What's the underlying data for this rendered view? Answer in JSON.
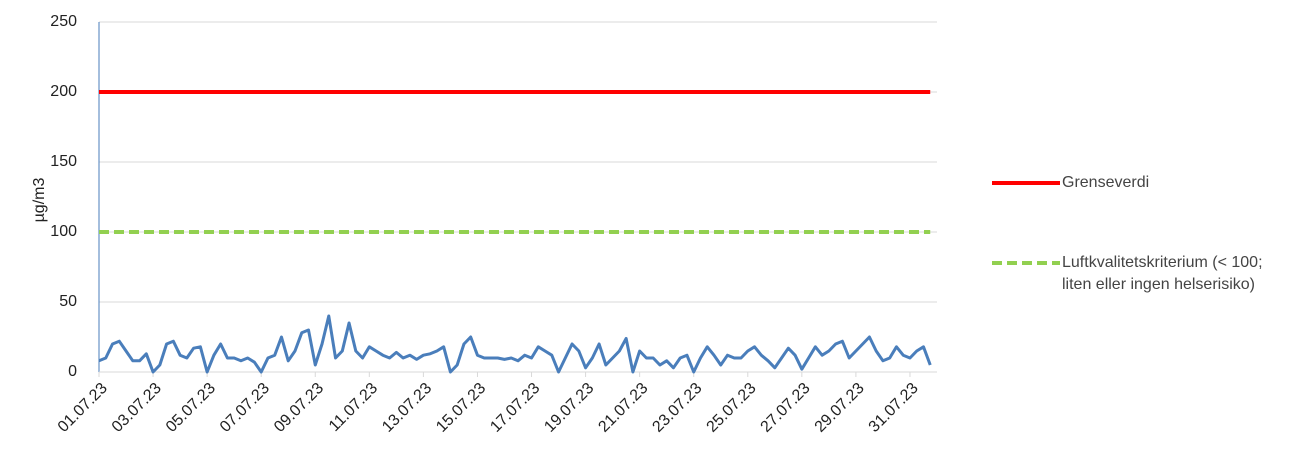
{
  "chart_data": {
    "type": "line",
    "y_label": "µg/m3",
    "categories": [
      "01.07.23",
      null,
      null,
      null,
      null,
      null,
      null,
      null,
      "03.07.23",
      null,
      null,
      null,
      null,
      null,
      null,
      null,
      "05.07.23",
      null,
      null,
      null,
      null,
      null,
      null,
      null,
      "07.07.23",
      null,
      null,
      null,
      null,
      null,
      null,
      null,
      "09.07.23",
      null,
      null,
      null,
      null,
      null,
      null,
      null,
      "11.07.23",
      null,
      null,
      null,
      null,
      null,
      null,
      null,
      "13.07.23",
      null,
      null,
      null,
      null,
      null,
      null,
      null,
      "15.07.23",
      null,
      null,
      null,
      null,
      null,
      null,
      null,
      "17.07.23",
      null,
      null,
      null,
      null,
      null,
      null,
      null,
      "19.07.23",
      null,
      null,
      null,
      null,
      null,
      null,
      null,
      "21.07.23",
      null,
      null,
      null,
      null,
      null,
      null,
      null,
      "23.07.23",
      null,
      null,
      null,
      null,
      null,
      null,
      null,
      "25.07.23",
      null,
      null,
      null,
      null,
      null,
      null,
      null,
      "27.07.23",
      null,
      null,
      null,
      null,
      null,
      null,
      null,
      "29.07.23",
      null,
      null,
      null,
      null,
      null,
      null,
      null,
      "31.07.23",
      null,
      null,
      null
    ],
    "series": [
      {
        "name": null,
        "color": "#4a7ebb",
        "width": 3,
        "dash": false,
        "values": [
          8,
          10,
          20,
          22,
          15,
          8,
          8,
          13,
          0,
          5,
          20,
          22,
          12,
          10,
          17,
          18,
          0,
          12,
          20,
          10,
          10,
          8,
          10,
          7,
          0,
          10,
          12,
          25,
          8,
          15,
          28,
          30,
          5,
          20,
          40,
          10,
          15,
          35,
          15,
          10,
          18,
          15,
          12,
          10,
          14,
          10,
          12,
          9,
          12,
          13,
          15,
          18,
          0,
          5,
          20,
          25,
          12,
          10,
          10,
          10,
          9,
          10,
          8,
          12,
          10,
          18,
          15,
          12,
          0,
          10,
          20,
          15,
          3,
          10,
          20,
          5,
          10,
          15,
          24,
          0,
          15,
          10,
          10,
          5,
          8,
          3,
          10,
          12,
          0,
          10,
          18,
          12,
          5,
          12,
          10,
          10,
          15,
          18,
          12,
          8,
          3,
          10,
          17,
          12,
          2,
          10,
          18,
          12,
          15,
          20,
          22,
          10,
          15,
          20,
          25,
          15,
          8,
          10,
          18,
          12,
          10,
          15,
          18,
          5
        ]
      },
      {
        "name": "Grenseverdi",
        "color": "#ff0000",
        "width": 4,
        "dash": false,
        "values": [
          200,
          200,
          200,
          200,
          200,
          200,
          200,
          200,
          200,
          200,
          200,
          200,
          200,
          200,
          200,
          200,
          200,
          200,
          200,
          200,
          200,
          200,
          200,
          200,
          200,
          200,
          200,
          200,
          200,
          200,
          200,
          200,
          200,
          200,
          200,
          200,
          200,
          200,
          200,
          200,
          200,
          200,
          200,
          200,
          200,
          200,
          200,
          200,
          200,
          200,
          200,
          200,
          200,
          200,
          200,
          200,
          200,
          200,
          200,
          200,
          200,
          200,
          200,
          200,
          200,
          200,
          200,
          200,
          200,
          200,
          200,
          200,
          200,
          200,
          200,
          200,
          200,
          200,
          200,
          200,
          200,
          200,
          200,
          200,
          200,
          200,
          200,
          200,
          200,
          200,
          200,
          200,
          200,
          200,
          200,
          200,
          200,
          200,
          200,
          200,
          200,
          200,
          200,
          200,
          200,
          200,
          200,
          200,
          200,
          200,
          200,
          200,
          200,
          200,
          200,
          200,
          200,
          200,
          200,
          200,
          200,
          200,
          200,
          200
        ]
      },
      {
        "name": "Luftkvalitetskriterium (< 100; liten eller ingen helserisiko)",
        "color": "#92d050",
        "width": 4,
        "dash": true,
        "values": [
          100,
          100,
          100,
          100,
          100,
          100,
          100,
          100,
          100,
          100,
          100,
          100,
          100,
          100,
          100,
          100,
          100,
          100,
          100,
          100,
          100,
          100,
          100,
          100,
          100,
          100,
          100,
          100,
          100,
          100,
          100,
          100,
          100,
          100,
          100,
          100,
          100,
          100,
          100,
          100,
          100,
          100,
          100,
          100,
          100,
          100,
          100,
          100,
          100,
          100,
          100,
          100,
          100,
          100,
          100,
          100,
          100,
          100,
          100,
          100,
          100,
          100,
          100,
          100,
          100,
          100,
          100,
          100,
          100,
          100,
          100,
          100,
          100,
          100,
          100,
          100,
          100,
          100,
          100,
          100,
          100,
          100,
          100,
          100,
          100,
          100,
          100,
          100,
          100,
          100,
          100,
          100,
          100,
          100,
          100,
          100,
          100,
          100,
          100,
          100,
          100,
          100,
          100,
          100,
          100,
          100,
          100,
          100,
          100,
          100,
          100,
          100,
          100,
          100,
          100,
          100,
          100,
          100,
          100,
          100,
          100,
          100,
          100,
          100
        ]
      }
    ],
    "ylim": [
      0,
      250
    ],
    "yticks": [
      0,
      50,
      100,
      150,
      200,
      250
    ],
    "grid": true
  }
}
